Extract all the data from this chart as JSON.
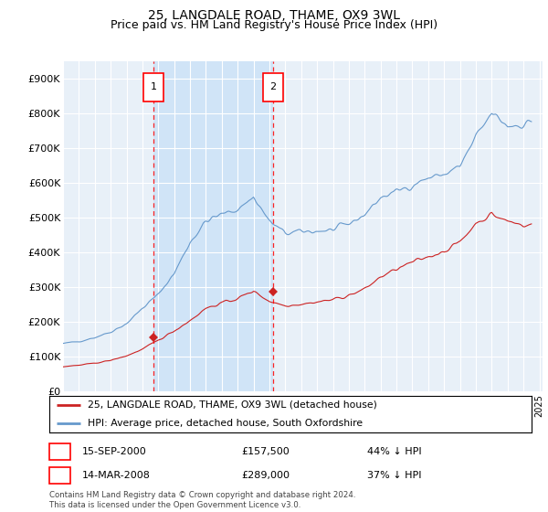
{
  "title": "25, LANGDALE ROAD, THAME, OX9 3WL",
  "subtitle": "Price paid vs. HM Land Registry's House Price Index (HPI)",
  "title_fontsize": 10,
  "subtitle_fontsize": 9,
  "background_color": "#ffffff",
  "plot_bg_color": "#e8f0f8",
  "shade_color": "#d0e4f7",
  "grid_color": "#ffffff",
  "ylim": [
    0,
    950000
  ],
  "yticks": [
    0,
    100000,
    200000,
    300000,
    400000,
    500000,
    600000,
    700000,
    800000,
    900000
  ],
  "ytick_labels": [
    "£0",
    "£100K",
    "£200K",
    "£300K",
    "£400K",
    "£500K",
    "£600K",
    "£700K",
    "£800K",
    "£900K"
  ],
  "xlim_start": 1995.0,
  "xlim_end": 2025.2,
  "marker1_x": 2000.71,
  "marker1_y": 157500,
  "marker1_label": "1",
  "marker1_date": "15-SEP-2000",
  "marker1_price": "£157,500",
  "marker1_hpi": "44% ↓ HPI",
  "marker2_x": 2008.21,
  "marker2_y": 289000,
  "marker2_label": "2",
  "marker2_date": "14-MAR-2008",
  "marker2_price": "£289,000",
  "marker2_hpi": "37% ↓ HPI",
  "red_line_color": "#cc2222",
  "blue_line_color": "#6699cc",
  "legend_label_red": "25, LANGDALE ROAD, THAME, OX9 3WL (detached house)",
  "legend_label_blue": "HPI: Average price, detached house, South Oxfordshire",
  "footnote": "Contains HM Land Registry data © Crown copyright and database right 2024.\nThis data is licensed under the Open Government Licence v3.0."
}
